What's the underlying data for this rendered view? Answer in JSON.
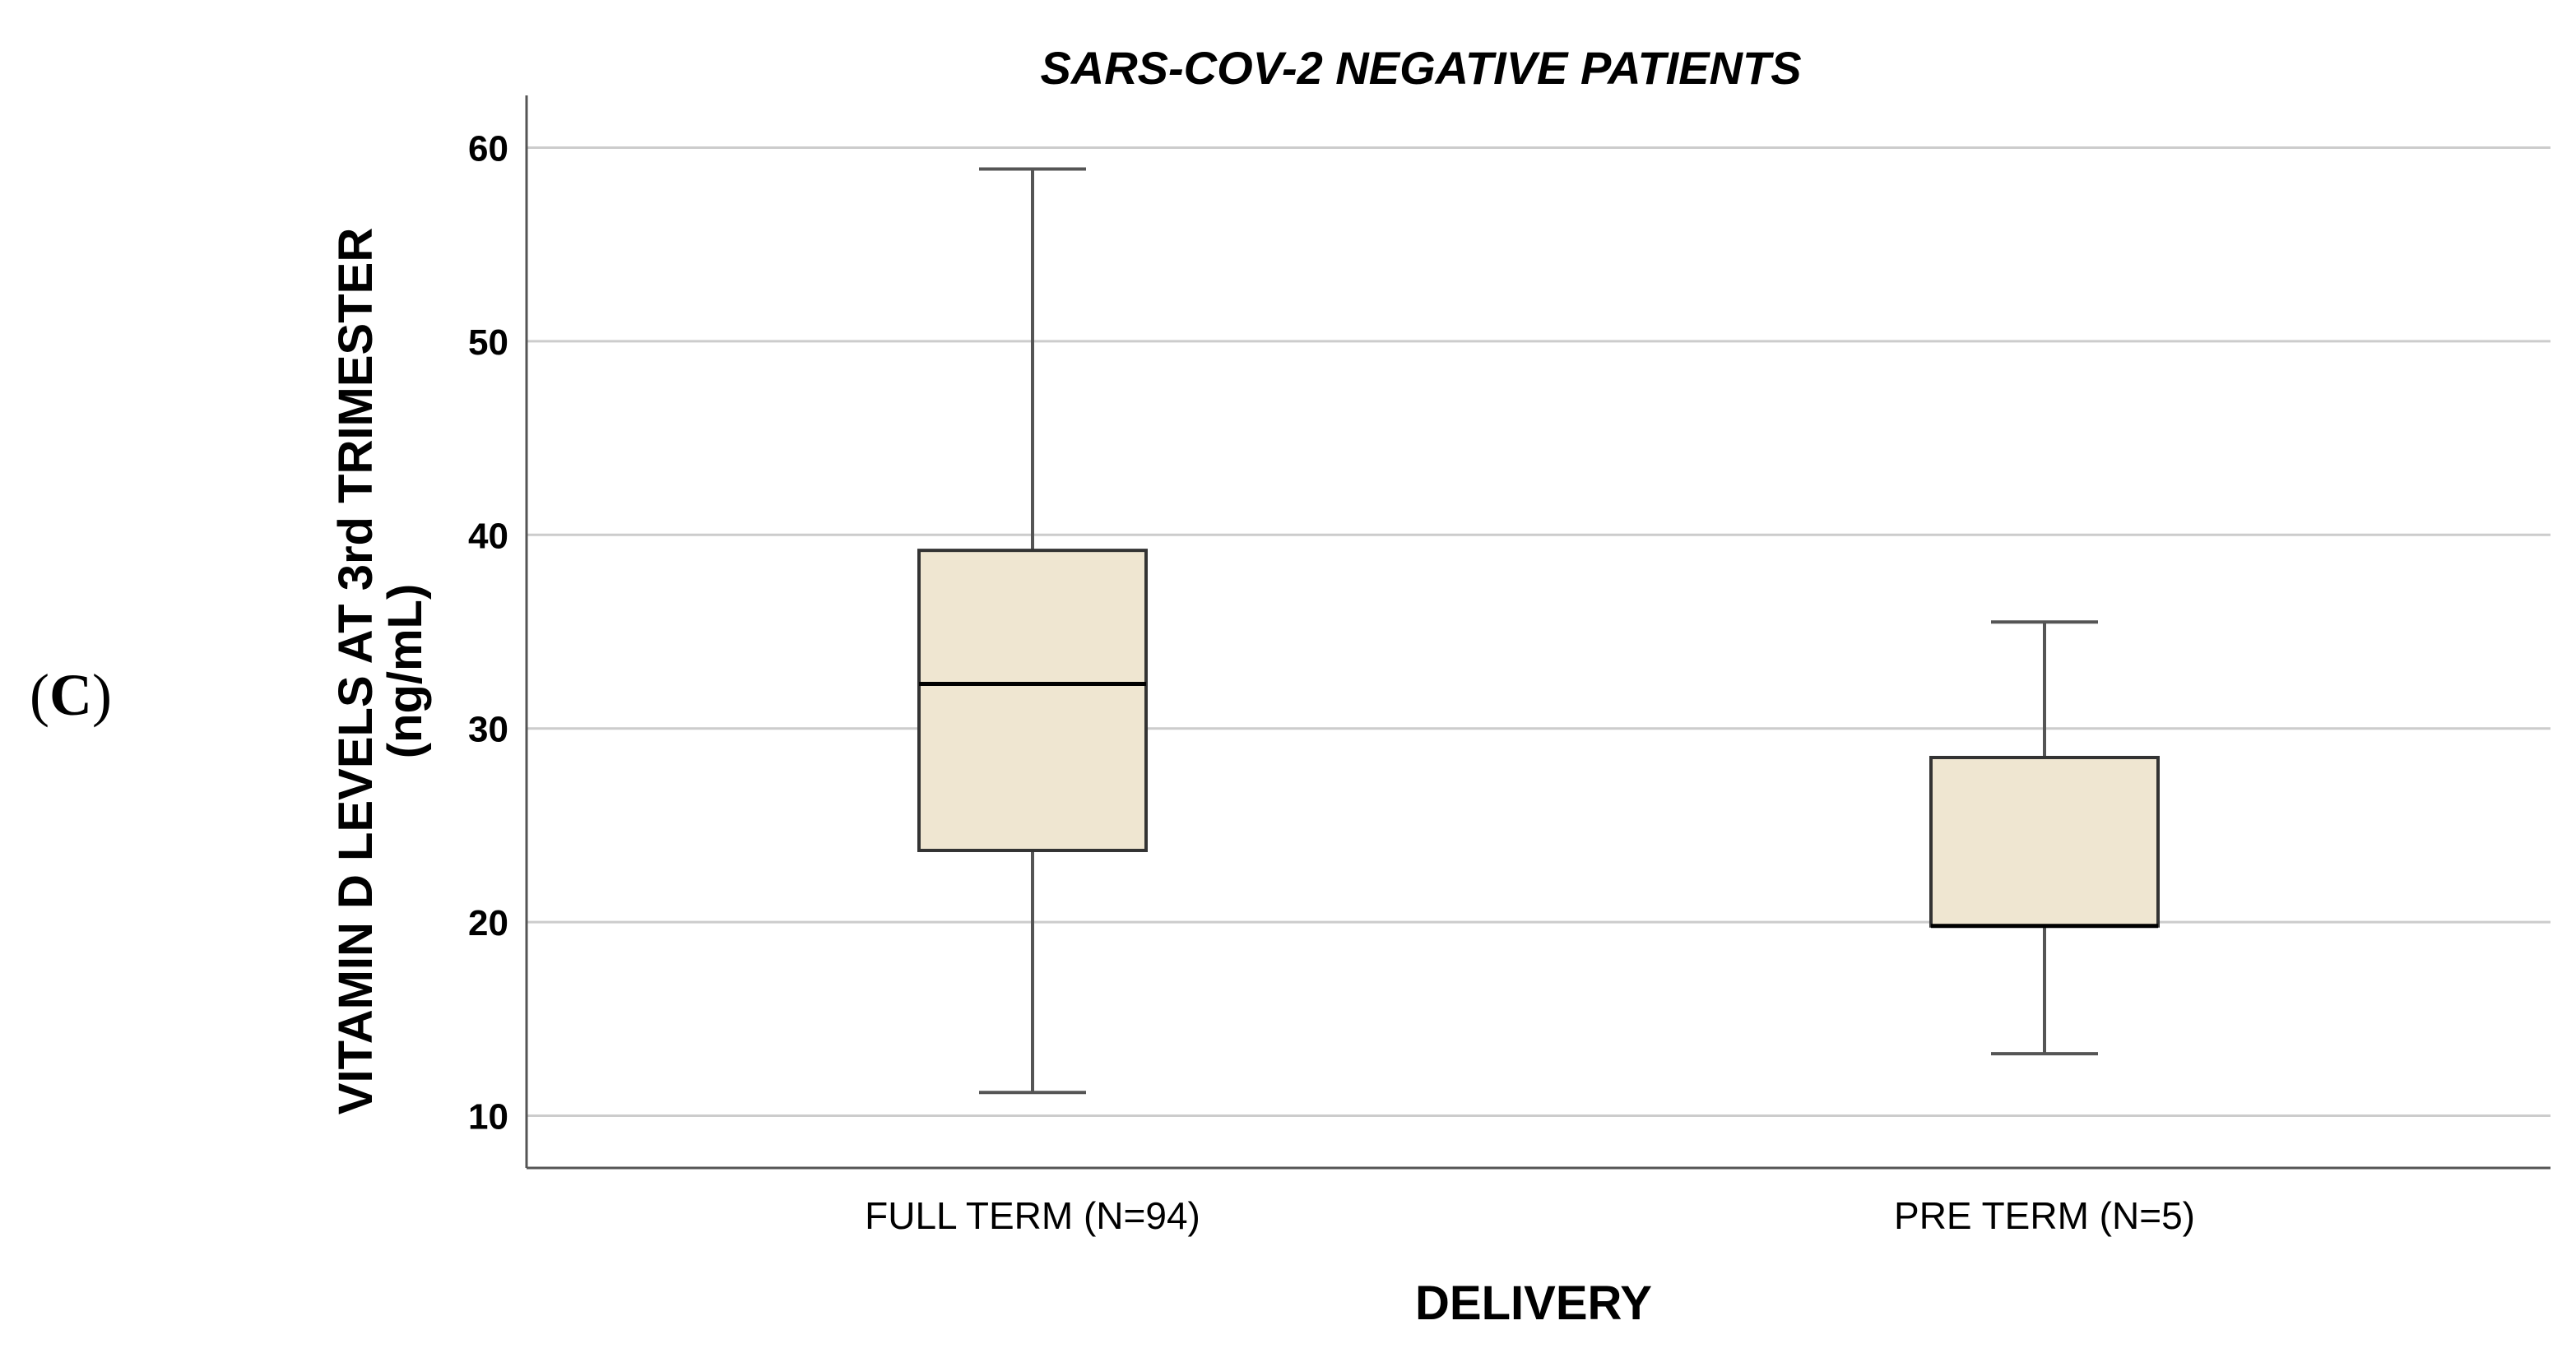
{
  "panel_label": {
    "open": "(",
    "letter": "C",
    "close": ")"
  },
  "chart_data": {
    "type": "box",
    "title": "SARS-COV-2 NEGATIVE PATIENTS",
    "xlabel": "DELIVERY",
    "ylabel_line1": "VITAMIN D LEVELS AT 3rd TRIMESTER",
    "ylabel_line2": "(ng/mL)",
    "ylim": [
      7.3,
      62.7
    ],
    "yticks": [
      10,
      20,
      30,
      40,
      50,
      60
    ],
    "grid": true,
    "box_fill": "#efe6d1",
    "categories": [
      "FULL TERM (N=94)",
      "PRE TERM (N=5)"
    ],
    "boxes": [
      {
        "min": 11.2,
        "q1": 23.7,
        "median": 32.3,
        "q3": 39.2,
        "max": 58.9
      },
      {
        "min": 13.2,
        "q1": 19.8,
        "median": 19.8,
        "q3": 28.5,
        "max": 35.5
      }
    ]
  }
}
